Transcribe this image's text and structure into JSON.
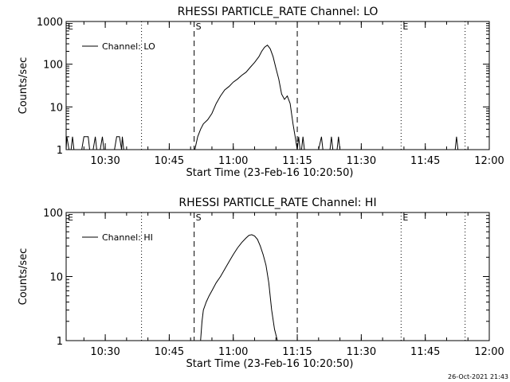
{
  "timestamp": "26-Oct-2021 21:43",
  "chart_data": [
    {
      "type": "line",
      "title": "RHESSI PARTICLE_RATE Channel: LO",
      "xlabel": "Start Time (23-Feb-16 10:20:50)",
      "ylabel": "Counts/sec",
      "yscale": "log",
      "ylim": [
        1,
        1000
      ],
      "ytick_labels": [
        "1",
        "10",
        "100",
        "1000"
      ],
      "xlim": [
        "10:20:50",
        "12:00:00"
      ],
      "xtick_labels": [
        "10:30",
        "10:45",
        "11:00",
        "11:15",
        "11:30",
        "11:45",
        "12:00"
      ],
      "grid": false,
      "legend_position": "top-left",
      "legend": "Channel: LO",
      "markers": [
        {
          "label": "E",
          "time": "10:20:50",
          "style": "dotted"
        },
        {
          "label": "S",
          "time": "10:50:50",
          "style": "dashed"
        },
        {
          "label": "",
          "time": "11:15:00",
          "style": "dashed"
        },
        {
          "label": "",
          "time": "10:38:30",
          "style": "dotted"
        },
        {
          "label": "E",
          "time": "11:39:20",
          "style": "dotted"
        },
        {
          "label": "",
          "time": "11:54:20",
          "style": "dotted"
        }
      ],
      "series": [
        {
          "name": "Channel: LO",
          "x": [
            "10:20:50",
            "10:21:00",
            "10:21:30",
            "10:22:00",
            "10:22:20",
            "10:22:40",
            "10:23:00",
            "10:23:30",
            "10:24:30",
            "10:25:00",
            "10:25:20",
            "10:26:00",
            "10:26:20",
            "10:27:10",
            "10:27:40",
            "10:28:00",
            "10:28:50",
            "10:29:20",
            "10:29:40",
            "10:30:20",
            "10:31:00",
            "10:32:10",
            "10:32:40",
            "10:33:00",
            "10:33:20",
            "10:33:50",
            "10:34:00",
            "10:34:20",
            "10:40:00",
            "10:51:00",
            "10:51:40",
            "10:52:20",
            "10:53:00",
            "10:54:00",
            "10:55:00",
            "10:56:00",
            "10:57:00",
            "10:58:00",
            "10:59:00",
            "11:00:00",
            "11:01:00",
            "11:02:00",
            "11:03:00",
            "11:04:00",
            "11:05:00",
            "11:06:00",
            "11:06:40",
            "11:07:20",
            "11:08:00",
            "11:08:40",
            "11:09:20",
            "11:10:00",
            "11:10:40",
            "11:11:20",
            "11:12:00",
            "11:12:40",
            "11:13:20",
            "11:14:00",
            "11:14:30",
            "11:15:00",
            "11:15:20",
            "11:15:40",
            "11:16:00",
            "11:16:20",
            "11:16:40",
            "11:17:00",
            "11:20:00",
            "11:20:40",
            "11:21:00",
            "11:21:20",
            "11:22:40",
            "11:23:00",
            "11:23:20",
            "11:24:20",
            "11:24:40",
            "11:25:00",
            "11:30:00",
            "11:52:00",
            "11:52:20",
            "11:52:40",
            "11:55:00",
            "12:00:00"
          ],
          "y": [
            1,
            2,
            1,
            1,
            2,
            1,
            1,
            1,
            1,
            2,
            2,
            2,
            1,
            1,
            2,
            1,
            1,
            2,
            1,
            1,
            1,
            1,
            2,
            2,
            2,
            1,
            2,
            1,
            1,
            1,
            2,
            3,
            4,
            5,
            7,
            12,
            18,
            25,
            30,
            38,
            45,
            55,
            65,
            85,
            110,
            150,
            200,
            250,
            280,
            230,
            150,
            80,
            45,
            20,
            15,
            18,
            12,
            4,
            2,
            1,
            2,
            1,
            1,
            2,
            1,
            1,
            1,
            2,
            1,
            1,
            1,
            2,
            1,
            1,
            2,
            1,
            1,
            1,
            2,
            1,
            1,
            1
          ]
        }
      ]
    },
    {
      "type": "line",
      "title": "RHESSI PARTICLE_RATE Channel: HI",
      "xlabel": "Start Time (23-Feb-16 10:20:50)",
      "ylabel": "Counts/sec",
      "yscale": "log",
      "ylim": [
        1,
        100
      ],
      "ytick_labels": [
        "1",
        "10",
        "100"
      ],
      "xlim": [
        "10:20:50",
        "12:00:00"
      ],
      "xtick_labels": [
        "10:30",
        "10:45",
        "11:00",
        "11:15",
        "11:30",
        "11:45",
        "12:00"
      ],
      "grid": false,
      "legend_position": "top-left",
      "legend": "Channel: HI",
      "markers": [
        {
          "label": "E",
          "time": "10:20:50",
          "style": "dotted"
        },
        {
          "label": "S",
          "time": "10:50:50",
          "style": "dashed"
        },
        {
          "label": "",
          "time": "11:15:00",
          "style": "dashed"
        },
        {
          "label": "",
          "time": "10:38:30",
          "style": "dotted"
        },
        {
          "label": "E",
          "time": "11:39:20",
          "style": "dotted"
        },
        {
          "label": "",
          "time": "11:54:20",
          "style": "dotted"
        }
      ],
      "series": [
        {
          "name": "Channel: HI",
          "x": [
            "10:52:20",
            "10:52:40",
            "10:53:00",
            "10:53:40",
            "10:54:20",
            "10:55:00",
            "10:56:00",
            "10:57:00",
            "10:58:00",
            "10:59:00",
            "11:00:00",
            "11:01:00",
            "11:02:00",
            "11:03:00",
            "11:03:40",
            "11:04:20",
            "11:05:00",
            "11:05:40",
            "11:06:20",
            "11:07:00",
            "11:07:40",
            "11:08:20",
            "11:09:00",
            "11:09:40",
            "11:10:20"
          ],
          "y": [
            1,
            2,
            3,
            4,
            5,
            6,
            8,
            10,
            13,
            17,
            22,
            28,
            34,
            40,
            44,
            45,
            43,
            38,
            30,
            22,
            15,
            8,
            3,
            1.5,
            1
          ]
        }
      ]
    }
  ]
}
